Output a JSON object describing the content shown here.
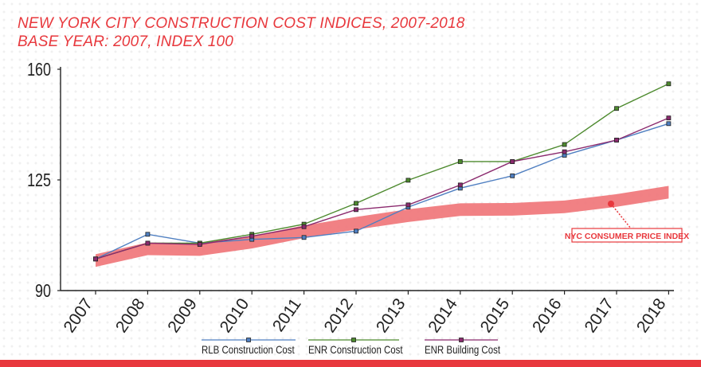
{
  "title_line1": "NEW YORK CITY CONSTRUCTION COST INDICES, 2007-2018",
  "title_line2": "BASE YEAR: 2007, INDEX 100",
  "colors": {
    "accent": "#e8383d",
    "rlb": "#4f7fc1",
    "enr_construction": "#4d8a2e",
    "enr_building": "#8b2a6e",
    "cpi_band": "#ef7377"
  },
  "chart_data": {
    "type": "line",
    "title": "NEW YORK CITY CONSTRUCTION COST INDICES, 2007-2018",
    "subtitle": "BASE YEAR: 2007, INDEX 100",
    "categories": [
      "2007",
      "2008",
      "2009",
      "2010",
      "2011",
      "2012",
      "2013",
      "2014",
      "2015",
      "2016",
      "2017",
      "2018"
    ],
    "ylim": [
      90,
      160
    ],
    "yticks": [
      90,
      125,
      160
    ],
    "series": [
      {
        "name": "RLB Construction Cost",
        "values": [
          100,
          107.8,
          105,
          106.2,
          106.8,
          108.8,
          116.4,
          122.4,
          126.3,
          132.8,
          137.6,
          142.8
        ]
      },
      {
        "name": "ENR Construction Cost",
        "values": [
          100,
          105,
          105,
          107.8,
          111,
          117.6,
          124.9,
          130.8,
          130.8,
          136.2,
          147.6,
          155.4
        ]
      },
      {
        "name": "ENR Building Cost",
        "values": [
          100,
          105,
          104.6,
          107.2,
          110.2,
          115.6,
          117.1,
          123.4,
          130.8,
          133.9,
          137.6,
          144.6
        ]
      }
    ],
    "band": {
      "label": "NYC CONSUMER PRICE INDEX",
      "center": [
        99.5,
        103.2,
        103,
        105.3,
        108.6,
        111.3,
        113.7,
        115.6,
        115.7,
        116.5,
        118.5,
        121.1
      ],
      "half_width": 2
    },
    "legend_position": "bottom"
  }
}
